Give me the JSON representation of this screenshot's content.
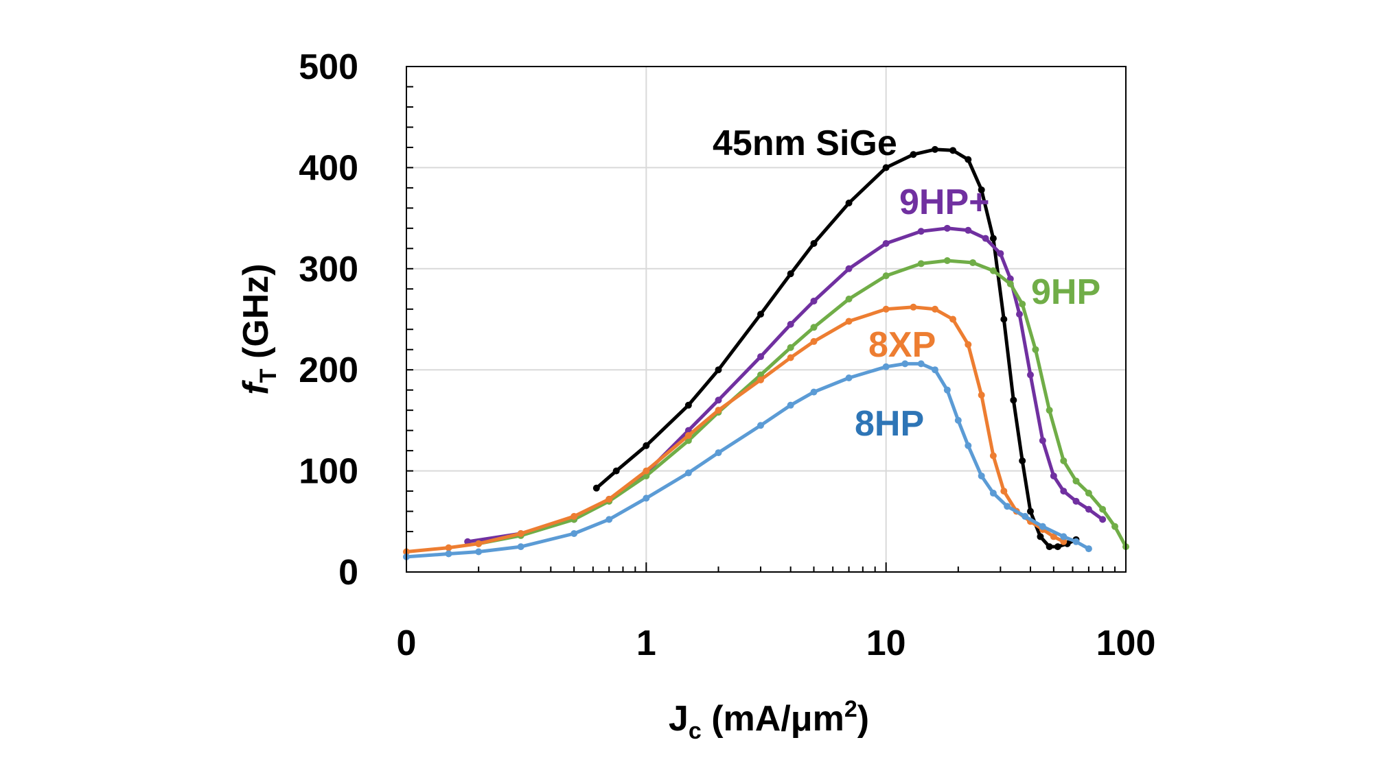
{
  "chart_data": {
    "type": "line",
    "title": "",
    "xlabel": {
      "main": "J",
      "sub": "c",
      "rest": " (mA/μm",
      "sup": "2",
      "close": ")"
    },
    "ylabel": {
      "main": "f",
      "sub": "T",
      "rest": " (GHz)"
    },
    "xscale": "log",
    "xlim": [
      0.1,
      100
    ],
    "ylim": [
      0,
      500
    ],
    "x_tick_labels": [
      {
        "value": 0.1,
        "label": "0"
      },
      {
        "value": 1,
        "label": "1"
      },
      {
        "value": 10,
        "label": "10"
      },
      {
        "value": 100,
        "label": "100"
      }
    ],
    "y_ticks": [
      0,
      100,
      200,
      300,
      400,
      500
    ],
    "grid": true,
    "series": [
      {
        "name": "45nm SiGe",
        "color": "#000000",
        "x": [
          0.62,
          0.75,
          1.0,
          1.5,
          2.0,
          3.0,
          4.0,
          5.0,
          7.0,
          10.0,
          13.0,
          16.0,
          19.0,
          22.0,
          25.0,
          28.0,
          31.0,
          34.0,
          37.0,
          40.0,
          44.0,
          48.0,
          52.0,
          57.0,
          62.0
        ],
        "y": [
          83,
          100,
          125,
          165,
          200,
          255,
          295,
          325,
          365,
          400,
          413,
          418,
          417,
          408,
          378,
          330,
          250,
          170,
          110,
          60,
          35,
          25,
          25,
          28,
          32
        ]
      },
      {
        "name": "9HP+",
        "color": "#7030a0",
        "x": [
          0.18,
          0.3,
          0.5,
          0.7,
          1.0,
          1.5,
          2.0,
          3.0,
          4.0,
          5.0,
          7.0,
          10.0,
          14.0,
          18.0,
          22.0,
          26.0,
          30.0,
          33.0,
          36.0,
          40.0,
          45.0,
          50.0,
          55.0,
          62.0,
          70.0,
          80.0
        ],
        "y": [
          30,
          38,
          52,
          72,
          98,
          140,
          170,
          213,
          245,
          268,
          300,
          325,
          337,
          340,
          338,
          330,
          315,
          290,
          255,
          195,
          130,
          95,
          80,
          70,
          62,
          52
        ]
      },
      {
        "name": "9HP",
        "color": "#70ad47",
        "x": [
          0.2,
          0.3,
          0.5,
          0.7,
          1.0,
          1.5,
          2.0,
          3.0,
          4.0,
          5.0,
          7.0,
          10.0,
          14.0,
          18.0,
          23.0,
          28.0,
          33.0,
          37.0,
          42.0,
          48.0,
          55.0,
          62.0,
          70.0,
          80.0,
          90.0,
          100.0
        ],
        "y": [
          28,
          36,
          52,
          70,
          95,
          130,
          158,
          195,
          222,
          242,
          270,
          293,
          305,
          308,
          306,
          298,
          285,
          265,
          220,
          160,
          110,
          90,
          78,
          62,
          45,
          25
        ]
      },
      {
        "name": "8XP",
        "color": "#ed7d31",
        "x": [
          0.1,
          0.15,
          0.2,
          0.3,
          0.5,
          0.7,
          1.0,
          1.5,
          2.0,
          3.0,
          4.0,
          5.0,
          7.0,
          10.0,
          13.0,
          16.0,
          19.0,
          22.0,
          25.0,
          28.0,
          31.0,
          35.0,
          40.0,
          45.0,
          50.0,
          55.0
        ],
        "y": [
          20,
          24,
          28,
          38,
          55,
          72,
          100,
          135,
          160,
          190,
          212,
          228,
          248,
          260,
          262,
          260,
          250,
          225,
          175,
          115,
          80,
          60,
          50,
          42,
          35,
          30
        ]
      },
      {
        "name": "8HP",
        "color": "#5b9bd5",
        "x": [
          0.1,
          0.15,
          0.2,
          0.3,
          0.5,
          0.7,
          1.0,
          1.5,
          2.0,
          3.0,
          4.0,
          5.0,
          7.0,
          10.0,
          12.0,
          14.0,
          16.0,
          18.0,
          20.0,
          22.0,
          25.0,
          28.0,
          32.0,
          38.0,
          45.0,
          55.0,
          62.0,
          70.0
        ],
        "y": [
          15,
          18,
          20,
          25,
          38,
          52,
          73,
          98,
          118,
          145,
          165,
          178,
          192,
          203,
          206,
          206,
          200,
          180,
          150,
          125,
          95,
          78,
          65,
          55,
          45,
          35,
          30,
          23
        ]
      }
    ],
    "annotations": [
      {
        "text": "45nm SiGe",
        "series": "45nm SiGe"
      },
      {
        "text": "9HP+",
        "series": "9HP+"
      },
      {
        "text": "9HP",
        "series": "9HP"
      },
      {
        "text": "8XP",
        "series": "8XP"
      },
      {
        "text": "8HP",
        "series": "8HP"
      }
    ],
    "annotation_colors": {
      "45nm SiGe": "#000000",
      "9HP+": "#7030a0",
      "9HP": "#70ad47",
      "8XP": "#ed7d31",
      "8HP": "#2e75b6"
    }
  }
}
